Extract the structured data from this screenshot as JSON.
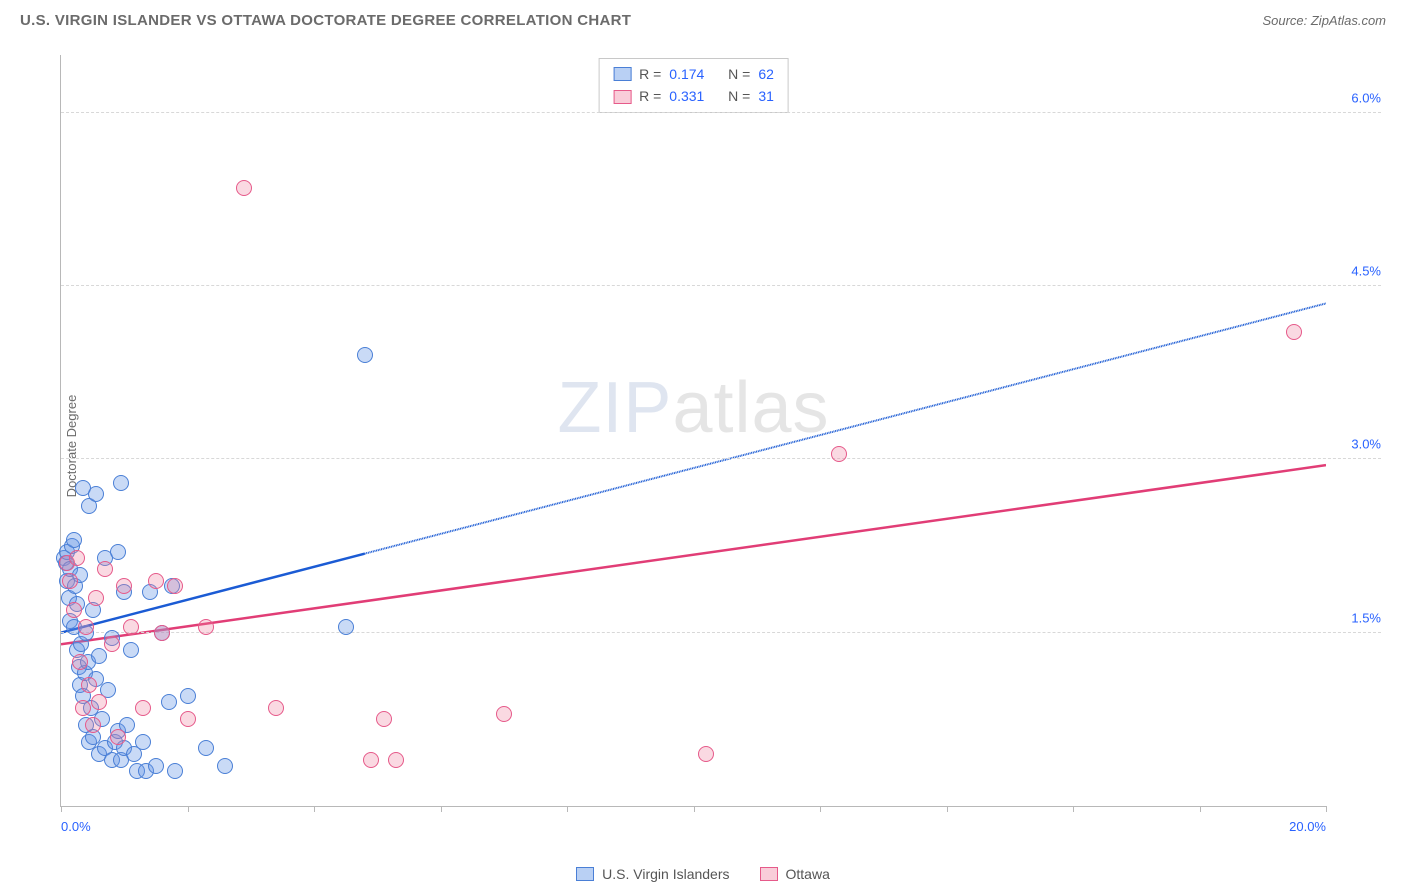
{
  "header": {
    "title": "U.S. VIRGIN ISLANDER VS OTTAWA DOCTORATE DEGREE CORRELATION CHART",
    "source": "Source: ZipAtlas.com"
  },
  "watermark": {
    "bold": "ZIP",
    "light": "atlas"
  },
  "chart": {
    "type": "scatter",
    "ylabel": "Doctorate Degree",
    "xlim": [
      0,
      20
    ],
    "ylim": [
      0,
      6.5
    ],
    "xtick_positions": [
      0,
      2,
      4,
      6,
      8,
      10,
      12,
      14,
      16,
      18,
      20
    ],
    "xtick_labels": {
      "0": "0.0%",
      "20": "20.0%"
    },
    "ytick_positions": [
      1.5,
      3.0,
      4.5,
      6.0
    ],
    "ytick_labels": [
      "1.5%",
      "3.0%",
      "4.5%",
      "6.0%"
    ],
    "background_color": "#ffffff",
    "grid_color": "#d8d8d8",
    "axis_color": "#b8b8b8",
    "marker_radius": 8,
    "series": [
      {
        "name": "U.S. Virgin Islanders",
        "color_fill": "rgba(100,150,230,0.35)",
        "color_stroke": "#4a7fd6",
        "trend_color": "#1b5bd4",
        "R": "0.174",
        "N": "62",
        "trend": {
          "x1": 0,
          "y1": 1.5,
          "x2": 20,
          "y2": 4.35,
          "solid_until_x": 4.8
        },
        "points": [
          [
            0.05,
            2.15
          ],
          [
            0.08,
            2.1
          ],
          [
            0.1,
            2.2
          ],
          [
            0.1,
            1.95
          ],
          [
            0.12,
            1.8
          ],
          [
            0.15,
            2.05
          ],
          [
            0.15,
            1.6
          ],
          [
            0.18,
            2.25
          ],
          [
            0.2,
            1.55
          ],
          [
            0.2,
            2.3
          ],
          [
            0.22,
            1.9
          ],
          [
            0.25,
            1.75
          ],
          [
            0.25,
            1.35
          ],
          [
            0.28,
            1.2
          ],
          [
            0.3,
            2.0
          ],
          [
            0.3,
            1.05
          ],
          [
            0.32,
            1.4
          ],
          [
            0.35,
            2.75
          ],
          [
            0.35,
            0.95
          ],
          [
            0.38,
            1.15
          ],
          [
            0.4,
            1.5
          ],
          [
            0.4,
            0.7
          ],
          [
            0.42,
            1.25
          ],
          [
            0.45,
            2.6
          ],
          [
            0.45,
            0.55
          ],
          [
            0.48,
            0.85
          ],
          [
            0.5,
            1.7
          ],
          [
            0.5,
            0.6
          ],
          [
            0.55,
            1.1
          ],
          [
            0.55,
            2.7
          ],
          [
            0.6,
            0.45
          ],
          [
            0.6,
            1.3
          ],
          [
            0.65,
            0.75
          ],
          [
            0.7,
            0.5
          ],
          [
            0.7,
            2.15
          ],
          [
            0.75,
            1.0
          ],
          [
            0.8,
            0.4
          ],
          [
            0.8,
            1.45
          ],
          [
            0.85,
            0.55
          ],
          [
            0.9,
            2.2
          ],
          [
            0.9,
            0.65
          ],
          [
            0.95,
            0.4
          ],
          [
            1.0,
            1.85
          ],
          [
            1.0,
            0.5
          ],
          [
            1.05,
            0.7
          ],
          [
            1.1,
            1.35
          ],
          [
            1.15,
            0.45
          ],
          [
            1.2,
            0.3
          ],
          [
            1.3,
            0.55
          ],
          [
            1.35,
            0.3
          ],
          [
            1.4,
            1.85
          ],
          [
            1.5,
            0.35
          ],
          [
            1.6,
            1.5
          ],
          [
            1.7,
            0.9
          ],
          [
            1.75,
            1.9
          ],
          [
            1.8,
            0.3
          ],
          [
            2.0,
            0.95
          ],
          [
            2.3,
            0.5
          ],
          [
            2.6,
            0.35
          ],
          [
            4.5,
            1.55
          ],
          [
            4.8,
            3.9
          ],
          [
            0.95,
            2.8
          ]
        ]
      },
      {
        "name": "Ottawa",
        "color_fill": "rgba(240,130,160,0.3)",
        "color_stroke": "#e65a8a",
        "trend_color": "#e13d76",
        "R": "0.331",
        "N": "31",
        "trend": {
          "x1": 0,
          "y1": 1.4,
          "x2": 20,
          "y2": 2.95,
          "solid_until_x": 20
        },
        "points": [
          [
            0.1,
            2.1
          ],
          [
            0.15,
            1.95
          ],
          [
            0.2,
            1.7
          ],
          [
            0.25,
            2.15
          ],
          [
            0.3,
            1.25
          ],
          [
            0.35,
            0.85
          ],
          [
            0.4,
            1.55
          ],
          [
            0.45,
            1.05
          ],
          [
            0.5,
            0.7
          ],
          [
            0.55,
            1.8
          ],
          [
            0.6,
            0.9
          ],
          [
            0.7,
            2.05
          ],
          [
            0.8,
            1.4
          ],
          [
            0.9,
            0.6
          ],
          [
            1.0,
            1.9
          ],
          [
            1.1,
            1.55
          ],
          [
            1.3,
            0.85
          ],
          [
            1.5,
            1.95
          ],
          [
            1.6,
            1.5
          ],
          [
            1.8,
            1.9
          ],
          [
            2.0,
            0.75
          ],
          [
            2.3,
            1.55
          ],
          [
            2.9,
            5.35
          ],
          [
            3.4,
            0.85
          ],
          [
            4.9,
            0.4
          ],
          [
            5.1,
            0.75
          ],
          [
            5.3,
            0.4
          ],
          [
            7.0,
            0.8
          ],
          [
            10.2,
            0.45
          ],
          [
            12.3,
            3.05
          ],
          [
            19.5,
            4.1
          ]
        ]
      }
    ]
  },
  "legend_stats": {
    "rows": [
      {
        "swatch": "a",
        "R_label": "R =",
        "R": "0.174",
        "N_label": "N =",
        "N": "62"
      },
      {
        "swatch": "b",
        "R_label": "R =",
        "R": "0.331",
        "N_label": "N =",
        "N": "31"
      }
    ]
  },
  "bottom_legend": {
    "items": [
      {
        "swatch": "a",
        "label": "U.S. Virgin Islanders"
      },
      {
        "swatch": "b",
        "label": "Ottawa"
      }
    ]
  }
}
